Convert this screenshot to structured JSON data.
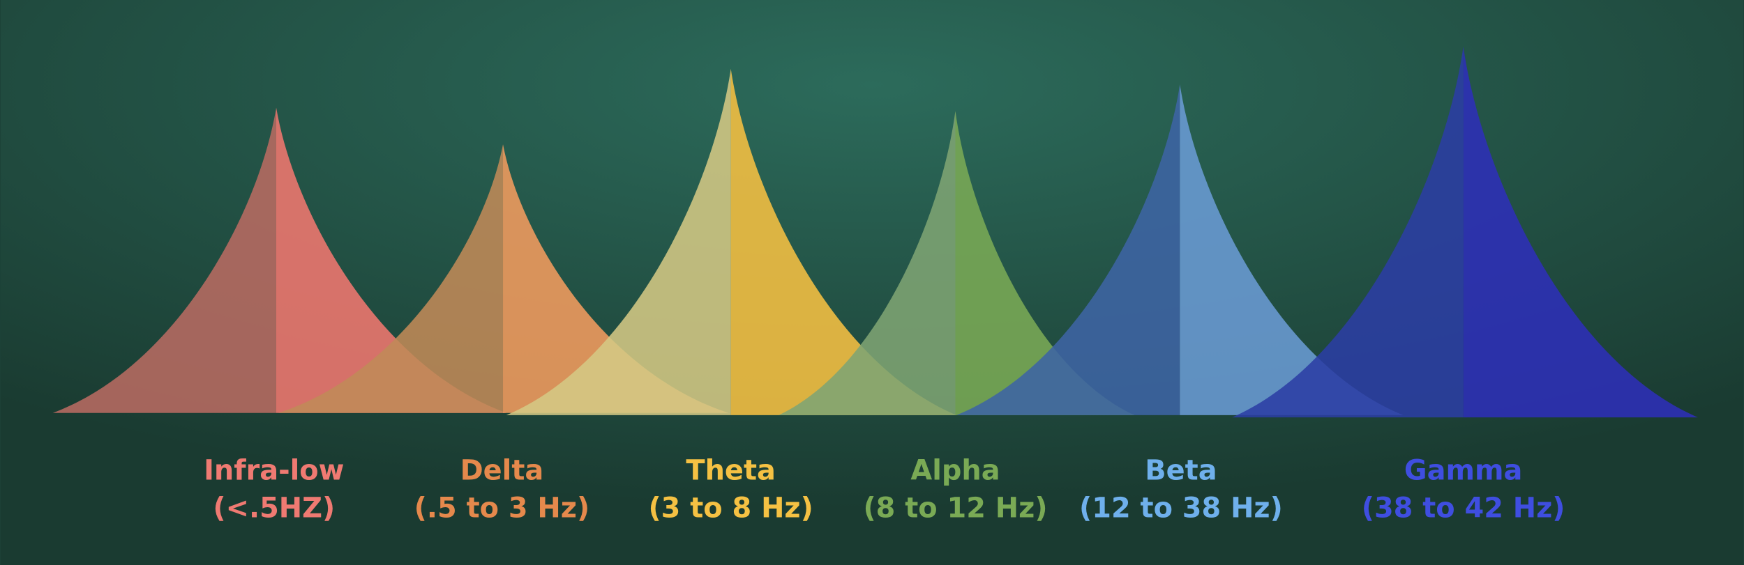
{
  "bands": [
    {
      "name": "Infra-low",
      "range": "(<.5HZ)"
    },
    {
      "name": "Delta",
      "range": "(.5 to 3 Hz)"
    },
    {
      "name": "Theta",
      "range": "(3 to 8 Hz)"
    },
    {
      "name": "Alpha",
      "range": "(8 to 12 Hz)"
    },
    {
      "name": "Beta",
      "range": "(12 to 38 Hz)"
    },
    {
      "name": "Gamma",
      "range": "(38 to 42 Hz)"
    }
  ]
}
